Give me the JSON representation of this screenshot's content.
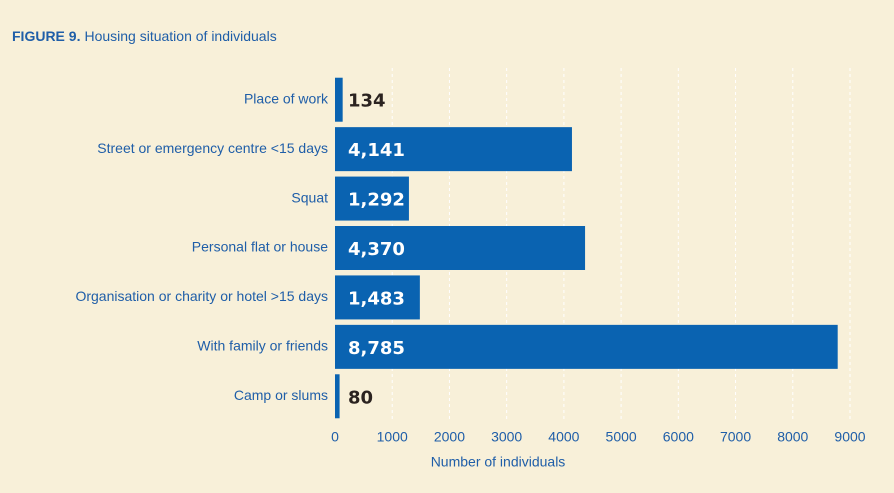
{
  "chart_data": {
    "type": "bar",
    "orientation": "horizontal",
    "figure_label": "FIGURE 9.",
    "title": "Housing situation of individuals",
    "xlabel": "Number of individuals",
    "categories": [
      "Place of work",
      "Street or emergency centre <15 days",
      "Squat",
      "Personal flat or house",
      "Organisation or charity or hotel >15 days",
      "With family or friends",
      "Camp or slums"
    ],
    "values": [
      134,
      4141,
      1292,
      4370,
      1483,
      8785,
      80
    ],
    "value_labels": [
      "134",
      "4,141",
      "1,292",
      "4,370",
      "1,483",
      "8,785",
      "80"
    ],
    "color": "#0a63b1",
    "xlim": [
      0,
      9000
    ],
    "xticks": [
      0,
      1000,
      2000,
      3000,
      4000,
      5000,
      6000,
      7000,
      8000,
      9000
    ],
    "grid": true
  }
}
